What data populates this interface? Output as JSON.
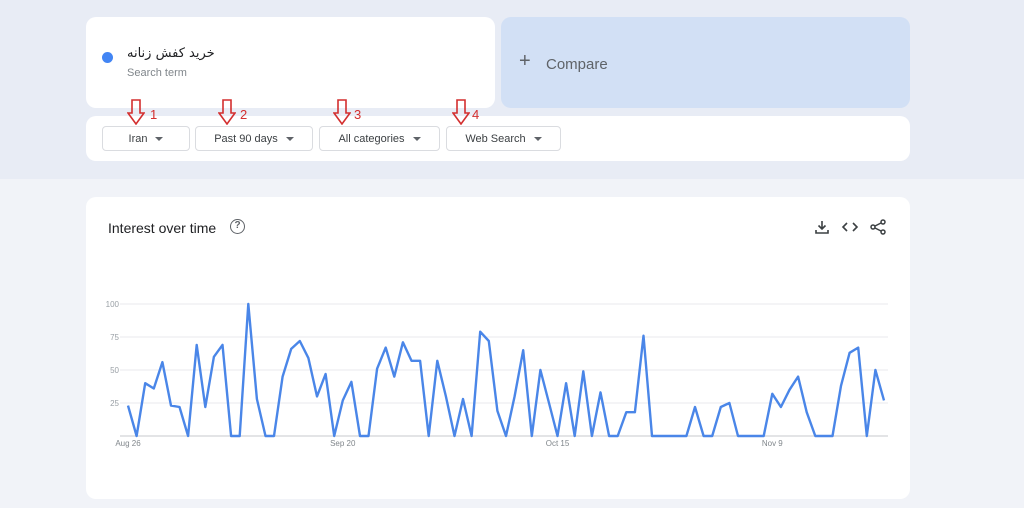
{
  "search_term": {
    "name": "خرید کفش زنانه",
    "label": "Search term",
    "color": "#4285f4"
  },
  "compare": {
    "label": "Compare",
    "icon": "plus-icon"
  },
  "filters": [
    {
      "label": "Iran",
      "annotation": "1"
    },
    {
      "label": "Past 90 days",
      "annotation": "2"
    },
    {
      "label": "All categories",
      "annotation": "3"
    },
    {
      "label": "Web Search",
      "annotation": "4"
    }
  ],
  "chart_card": {
    "title": "Interest over time",
    "help_icon": "help-icon",
    "actions": [
      "download-icon",
      "embed-code-icon",
      "share-icon"
    ]
  },
  "chart_data": {
    "type": "line",
    "title": "",
    "xlabel": "",
    "ylabel": "",
    "ylim": [
      0,
      100
    ],
    "yticks": [
      100,
      75,
      50,
      25
    ],
    "x_tick_labels": [
      {
        "label": "Aug 26",
        "index": 0
      },
      {
        "label": "Sep 20",
        "index": 25
      },
      {
        "label": "Oct 15",
        "index": 50
      },
      {
        "label": "Nov 9",
        "index": 75
      }
    ],
    "grid": true,
    "color": "#4a86e8",
    "values": [
      23,
      0,
      40,
      36,
      56,
      23,
      22,
      0,
      69,
      22,
      60,
      69,
      0,
      0,
      100,
      28,
      0,
      0,
      45,
      66,
      72,
      59,
      30,
      47,
      0,
      27,
      41,
      0,
      0,
      51,
      67,
      45,
      71,
      57,
      57,
      0,
      57,
      30,
      0,
      28,
      0,
      79,
      72,
      19,
      0,
      30,
      65,
      0,
      50,
      25,
      0,
      40,
      0,
      49,
      0,
      33,
      0,
      0,
      18,
      18,
      76,
      0,
      0,
      0,
      0,
      0,
      22,
      0,
      0,
      22,
      25,
      0,
      0,
      0,
      0,
      32,
      22,
      35,
      45,
      18,
      0,
      0,
      0,
      38,
      63,
      67,
      0,
      50,
      27
    ]
  }
}
